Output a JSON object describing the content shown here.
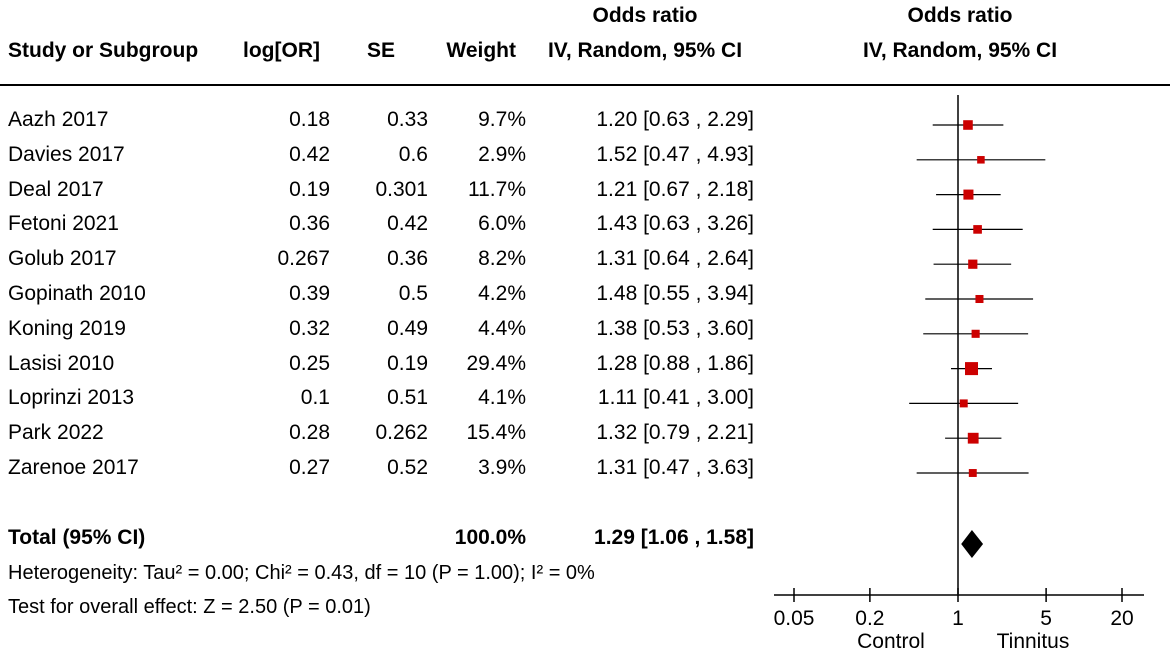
{
  "headers": {
    "study": "Study or Subgroup",
    "log_or": "log[OR]",
    "se": "SE",
    "weight": "Weight",
    "effect_top": "Odds ratio",
    "effect_sub": "IV, Random, 95% CI",
    "plot_top": "Odds ratio",
    "plot_sub": "IV, Random, 95% CI"
  },
  "rows": [
    {
      "study": "Aazh 2017",
      "log_or": "0.18",
      "se": "0.33",
      "weight": "9.7%",
      "ci": "1.20 [0.63 , 2.29]"
    },
    {
      "study": "Davies 2017",
      "log_or": "0.42",
      "se": "0.6",
      "weight": "2.9%",
      "ci": "1.52 [0.47 , 4.93]"
    },
    {
      "study": "Deal 2017",
      "log_or": "0.19",
      "se": "0.301",
      "weight": "11.7%",
      "ci": "1.21 [0.67 , 2.18]"
    },
    {
      "study": "Fetoni 2021",
      "log_or": "0.36",
      "se": "0.42",
      "weight": "6.0%",
      "ci": "1.43 [0.63 , 3.26]"
    },
    {
      "study": "Golub 2017",
      "log_or": "0.267",
      "se": "0.36",
      "weight": "8.2%",
      "ci": "1.31 [0.64 , 2.64]"
    },
    {
      "study": "Gopinath 2010",
      "log_or": "0.39",
      "se": "0.5",
      "weight": "4.2%",
      "ci": "1.48 [0.55 , 3.94]"
    },
    {
      "study": "Koning 2019",
      "log_or": "0.32",
      "se": "0.49",
      "weight": "4.4%",
      "ci": "1.38 [0.53 , 3.60]"
    },
    {
      "study": "Lasisi 2010",
      "log_or": "0.25",
      "se": "0.19",
      "weight": "29.4%",
      "ci": "1.28 [0.88 , 1.86]"
    },
    {
      "study": "Loprinzi 2013",
      "log_or": "0.1",
      "se": "0.51",
      "weight": "4.1%",
      "ci": "1.11 [0.41 , 3.00]"
    },
    {
      "study": "Park 2022",
      "log_or": "0.28",
      "se": "0.262",
      "weight": "15.4%",
      "ci": "1.32 [0.79 , 2.21]"
    },
    {
      "study": "Zarenoe 2017",
      "log_or": "0.27",
      "se": "0.52",
      "weight": "3.9%",
      "ci": "1.31 [0.47 , 3.63]"
    }
  ],
  "total": {
    "label": "Total (95% CI)",
    "weight": "100.0%",
    "ci": "1.29 [1.06 , 1.58]"
  },
  "heterogeneity": "Heterogeneity: Tau² = 0.00; Chi² = 0.43, df = 10 (P = 1.00); I² = 0%",
  "overall_effect": "Test for overall effect: Z = 2.50 (P = 0.01)",
  "chart_data": {
    "type": "forest",
    "title": "Odds ratio IV, Random, 95% CI",
    "scale": "log",
    "xlim": [
      0.05,
      20
    ],
    "ticks": [
      {
        "value": 0.05,
        "label": "0.05"
      },
      {
        "value": 0.2,
        "label": "0.2"
      },
      {
        "value": 1,
        "label": "1"
      },
      {
        "value": 5,
        "label": "5"
      },
      {
        "value": 20,
        "label": "20"
      }
    ],
    "xlabel_left": "Control",
    "xlabel_right": "Tinnitus",
    "marker_color": "#cc0000",
    "studies": [
      {
        "name": "Aazh 2017",
        "or": 1.2,
        "lo": 0.63,
        "hi": 2.29,
        "weight": 9.7
      },
      {
        "name": "Davies 2017",
        "or": 1.52,
        "lo": 0.47,
        "hi": 4.93,
        "weight": 2.9
      },
      {
        "name": "Deal 2017",
        "or": 1.21,
        "lo": 0.67,
        "hi": 2.18,
        "weight": 11.7
      },
      {
        "name": "Fetoni 2021",
        "or": 1.43,
        "lo": 0.63,
        "hi": 3.26,
        "weight": 6.0
      },
      {
        "name": "Golub 2017",
        "or": 1.31,
        "lo": 0.64,
        "hi": 2.64,
        "weight": 8.2
      },
      {
        "name": "Gopinath 2010",
        "or": 1.48,
        "lo": 0.55,
        "hi": 3.94,
        "weight": 4.2
      },
      {
        "name": "Koning 2019",
        "or": 1.38,
        "lo": 0.53,
        "hi": 3.6,
        "weight": 4.4
      },
      {
        "name": "Lasisi 2010",
        "or": 1.28,
        "lo": 0.88,
        "hi": 1.86,
        "weight": 29.4
      },
      {
        "name": "Loprinzi 2013",
        "or": 1.11,
        "lo": 0.41,
        "hi": 3.0,
        "weight": 4.1
      },
      {
        "name": "Park 2022",
        "or": 1.32,
        "lo": 0.79,
        "hi": 2.21,
        "weight": 15.4
      },
      {
        "name": "Zarenoe 2017",
        "or": 1.31,
        "lo": 0.47,
        "hi": 3.63,
        "weight": 3.9
      }
    ],
    "pooled": {
      "or": 1.29,
      "lo": 1.06,
      "hi": 1.58
    }
  }
}
